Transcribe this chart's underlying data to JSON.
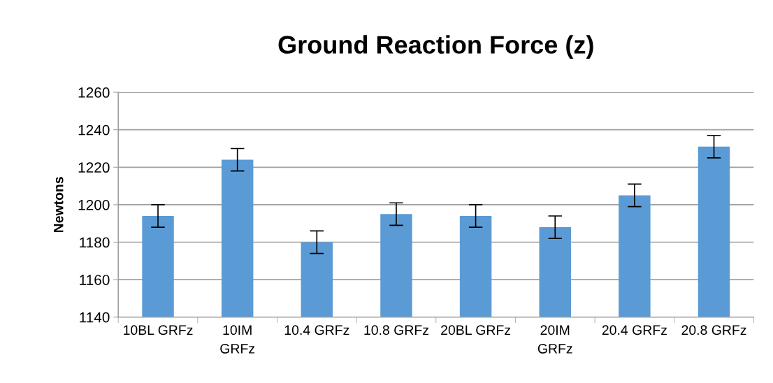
{
  "chart_data": {
    "type": "bar",
    "title": "Ground Reaction Force (z)",
    "ylabel": "Newtons",
    "categories": [
      "10BL GRFz",
      "10IM\nGRFz",
      "10.4 GRFz",
      "10.8 GRFz",
      "20BL GRFz",
      "20IM\nGRFz",
      "20.4 GRFz",
      "20.8 GRFz"
    ],
    "values": [
      1194,
      1224,
      1180,
      1195,
      1194,
      1188,
      1205,
      1231
    ],
    "errors": [
      6,
      6,
      6,
      6,
      6,
      6,
      6,
      6
    ],
    "color": "#5b9bd5",
    "ylim": [
      1140,
      1260
    ],
    "yticks": [
      1140,
      1160,
      1180,
      1200,
      1220,
      1240,
      1260
    ],
    "grid": "y",
    "legend": false
  }
}
